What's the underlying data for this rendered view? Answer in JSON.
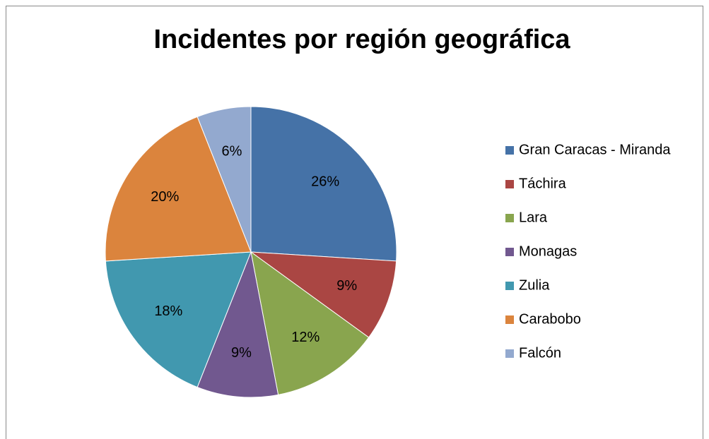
{
  "chart_data": {
    "type": "pie",
    "title": "Incidentes por región geográfica",
    "categories": [
      "Gran Caracas - Miranda",
      "Táchira",
      "Lara",
      "Monagas",
      "Zulia",
      "Carabobo",
      "Falcón"
    ],
    "values": [
      26,
      9,
      12,
      9,
      18,
      20,
      6
    ],
    "value_labels": [
      "26%",
      "9%",
      "12%",
      "9%",
      "18%",
      "20%",
      "6%"
    ],
    "colors": [
      "#4572A7",
      "#AA4643",
      "#89A54E",
      "#71588F",
      "#4198AF",
      "#DB843D",
      "#93A9CF"
    ],
    "legend": "right"
  }
}
